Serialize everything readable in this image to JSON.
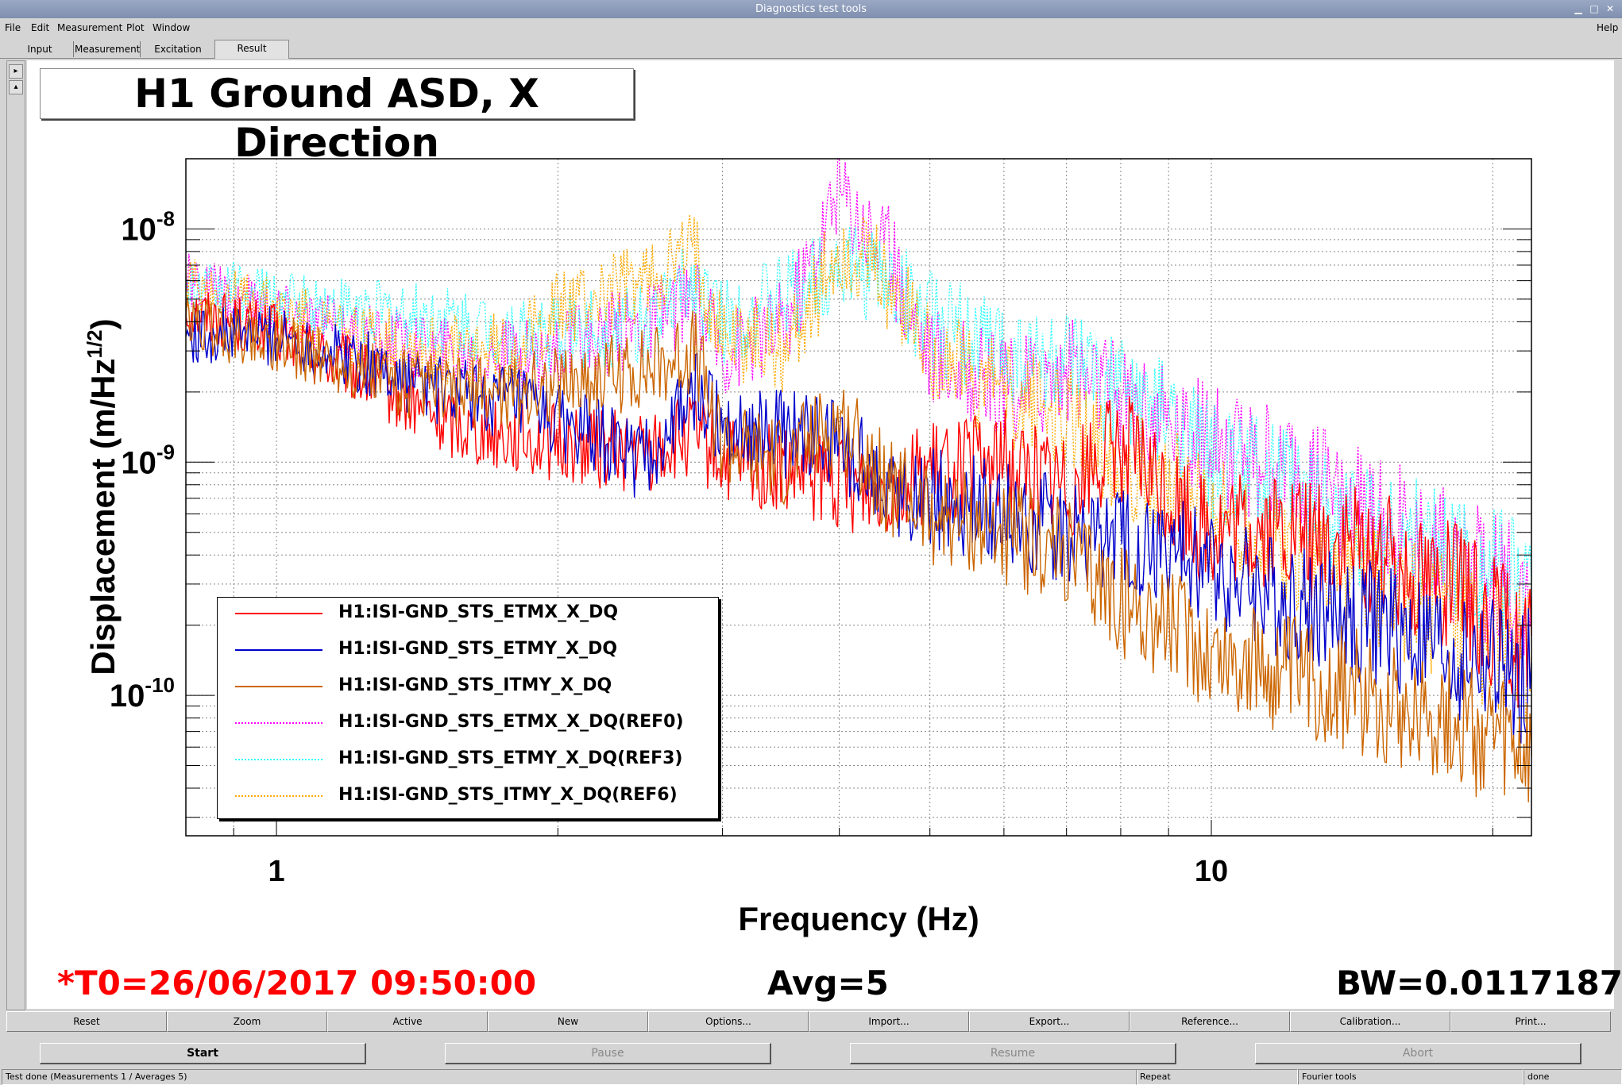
{
  "window": {
    "title": "Diagnostics test tools"
  },
  "menu": [
    {
      "label": "File"
    },
    {
      "label": "Edit"
    },
    {
      "label": "Measurement"
    },
    {
      "label": "Plot"
    },
    {
      "label": "Window"
    }
  ],
  "menu_help": "Help",
  "tabs": [
    {
      "label": "Input"
    },
    {
      "label": "Measurement"
    },
    {
      "label": "Excitation"
    },
    {
      "label": "Result",
      "active": true
    }
  ],
  "plot": {
    "title": "H1 Ground ASD, X Direction",
    "t0": "*T0=26/06/2017 09:50:00",
    "avg": "Avg=5",
    "bw": "BW=0.0117187",
    "colors": {
      "etmx": "#ff0000",
      "etmy": "#0000cc",
      "itmy": "#cc6600",
      "etmx_ref": "#ff00ff",
      "etmy_ref": "#33ffff",
      "itmy_ref": "#ffaa00",
      "t0": "#ff0000"
    }
  },
  "chart_data": {
    "type": "line",
    "title": "H1 Ground ASD, X Direction",
    "xlabel": "Frequency (Hz)",
    "ylabel": "Displacement (m/Hz^(1/2))",
    "xscale": "log",
    "yscale": "log",
    "xlim": [
      0.8,
      22
    ],
    "ylim": [
      2.5e-11,
      2e-08
    ],
    "x_ticks": [
      "1",
      "10"
    ],
    "y_ticks": [
      "10^-8",
      "10^-9",
      "10^-10"
    ],
    "grid": true,
    "legend_position": "bottom-left",
    "x": [
      0.8,
      0.9,
      1.0,
      1.2,
      1.5,
      1.8,
      2.0,
      2.5,
      2.8,
      3.0,
      3.5,
      4.0,
      4.5,
      5.0,
      6.0,
      7.0,
      8.0,
      9.0,
      10.0,
      12.0,
      15.0,
      18.0,
      22.0
    ],
    "series": [
      {
        "name": "H1:ISI-GND_STS_ETMX_X_DQ",
        "style": "solid",
        "color": "#ff0000",
        "values": [
          4.5e-09,
          4e-09,
          3.5e-09,
          2.5e-09,
          1.5e-09,
          1.3e-09,
          1.2e-09,
          1.1e-09,
          1.3e-09,
          1e-09,
          9e-10,
          8e-10,
          8e-10,
          9e-10,
          1e-09,
          8e-10,
          1.2e-09,
          7e-10,
          5e-10,
          5e-10,
          4e-10,
          3e-10,
          1.5e-10
        ]
      },
      {
        "name": "H1:ISI-GND_STS_ETMY_X_DQ",
        "style": "solid",
        "color": "#0000cc",
        "values": [
          3.5e-09,
          3.5e-09,
          3.5e-09,
          2.8e-09,
          2e-09,
          1.8e-09,
          1.5e-09,
          1e-09,
          2e-09,
          1.5e-09,
          1.3e-09,
          1.2e-09,
          8e-10,
          7e-10,
          6e-10,
          5e-10,
          4.5e-10,
          4e-10,
          3.5e-10,
          2.5e-10,
          2e-10,
          1.5e-10,
          1.2e-10
        ]
      },
      {
        "name": "H1:ISI-GND_STS_ITMY_X_DQ",
        "style": "solid",
        "color": "#cc6600",
        "values": [
          4e-09,
          3.5e-09,
          3.3e-09,
          2.5e-09,
          2e-09,
          2e-09,
          2.2e-09,
          2.5e-09,
          3e-09,
          1.2e-09,
          1e-09,
          1.5e-09,
          8e-10,
          6e-10,
          5e-10,
          4e-10,
          2.5e-10,
          2e-10,
          1.5e-10,
          1.2e-10,
          1e-10,
          8e-11,
          5e-11
        ]
      },
      {
        "name": "H1:ISI-GND_STS_ETMX_X_DQ(REF0)",
        "style": "dotted",
        "color": "#ff00ff",
        "values": [
          6e-09,
          5e-09,
          4.5e-09,
          3.5e-09,
          3e-09,
          2.8e-09,
          3e-09,
          4e-09,
          5e-09,
          3e-09,
          4e-09,
          1.5e-08,
          8e-09,
          3e-09,
          2e-09,
          2.5e-09,
          2e-09,
          1.5e-09,
          1.2e-09,
          9e-10,
          6e-10,
          4e-10,
          2.5e-10
        ]
      },
      {
        "name": "H1:ISI-GND_STS_ETMY_X_DQ(REF3)",
        "style": "dotted",
        "color": "#33ffff",
        "values": [
          5.5e-09,
          5.5e-09,
          5e-09,
          4.5e-09,
          4e-09,
          3.5e-09,
          3.5e-09,
          4e-09,
          6e-09,
          4e-09,
          5e-09,
          7e-09,
          6e-09,
          4e-09,
          3e-09,
          2.5e-09,
          2e-09,
          1.5e-09,
          1e-09,
          8e-10,
          5e-10,
          4e-10,
          3e-10
        ]
      },
      {
        "name": "H1:ISI-GND_STS_ITMY_X_DQ(REF6)",
        "style": "dotted",
        "color": "#ffaa00",
        "values": [
          6e-09,
          5e-09,
          4.5e-09,
          3.5e-09,
          3e-09,
          3e-09,
          4.5e-09,
          6e-09,
          8e-09,
          3.5e-09,
          3e-09,
          8e-09,
          6e-09,
          3e-09,
          2e-09,
          1.5e-09,
          1e-09,
          8e-10,
          6e-10,
          4e-10,
          3e-10,
          2e-10,
          1.5e-10
        ]
      }
    ]
  },
  "toolbar": [
    {
      "label": "Reset"
    },
    {
      "label": "Zoom"
    },
    {
      "label": "Active"
    },
    {
      "label": "New"
    },
    {
      "label": "Options..."
    },
    {
      "label": "Import..."
    },
    {
      "label": "Export..."
    },
    {
      "label": "Reference..."
    },
    {
      "label": "Calibration..."
    },
    {
      "label": "Print..."
    }
  ],
  "controls": [
    {
      "label": "Start",
      "enabled": true
    },
    {
      "label": "Pause",
      "enabled": false
    },
    {
      "label": "Resume",
      "enabled": false
    },
    {
      "label": "Abort",
      "enabled": false
    }
  ],
  "status": {
    "main": "Test done (Measurements 1 / Averages 5)",
    "repeat": "Repeat",
    "tool": "Fourier tools",
    "state": "done"
  }
}
